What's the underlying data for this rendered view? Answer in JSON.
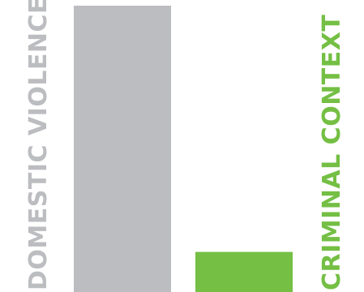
{
  "chart_data": {
    "type": "bar",
    "categories": [
      "DOMESTIC VIOLENCE",
      "CRIMINAL CONTEXT"
    ],
    "values": [
      100,
      14
    ],
    "colors": [
      "#bcbdc0",
      "#74bf44"
    ],
    "ylim": [
      0,
      100
    ],
    "grid": false,
    "legend": "none",
    "title": "",
    "xlabel": "",
    "ylabel": ""
  }
}
